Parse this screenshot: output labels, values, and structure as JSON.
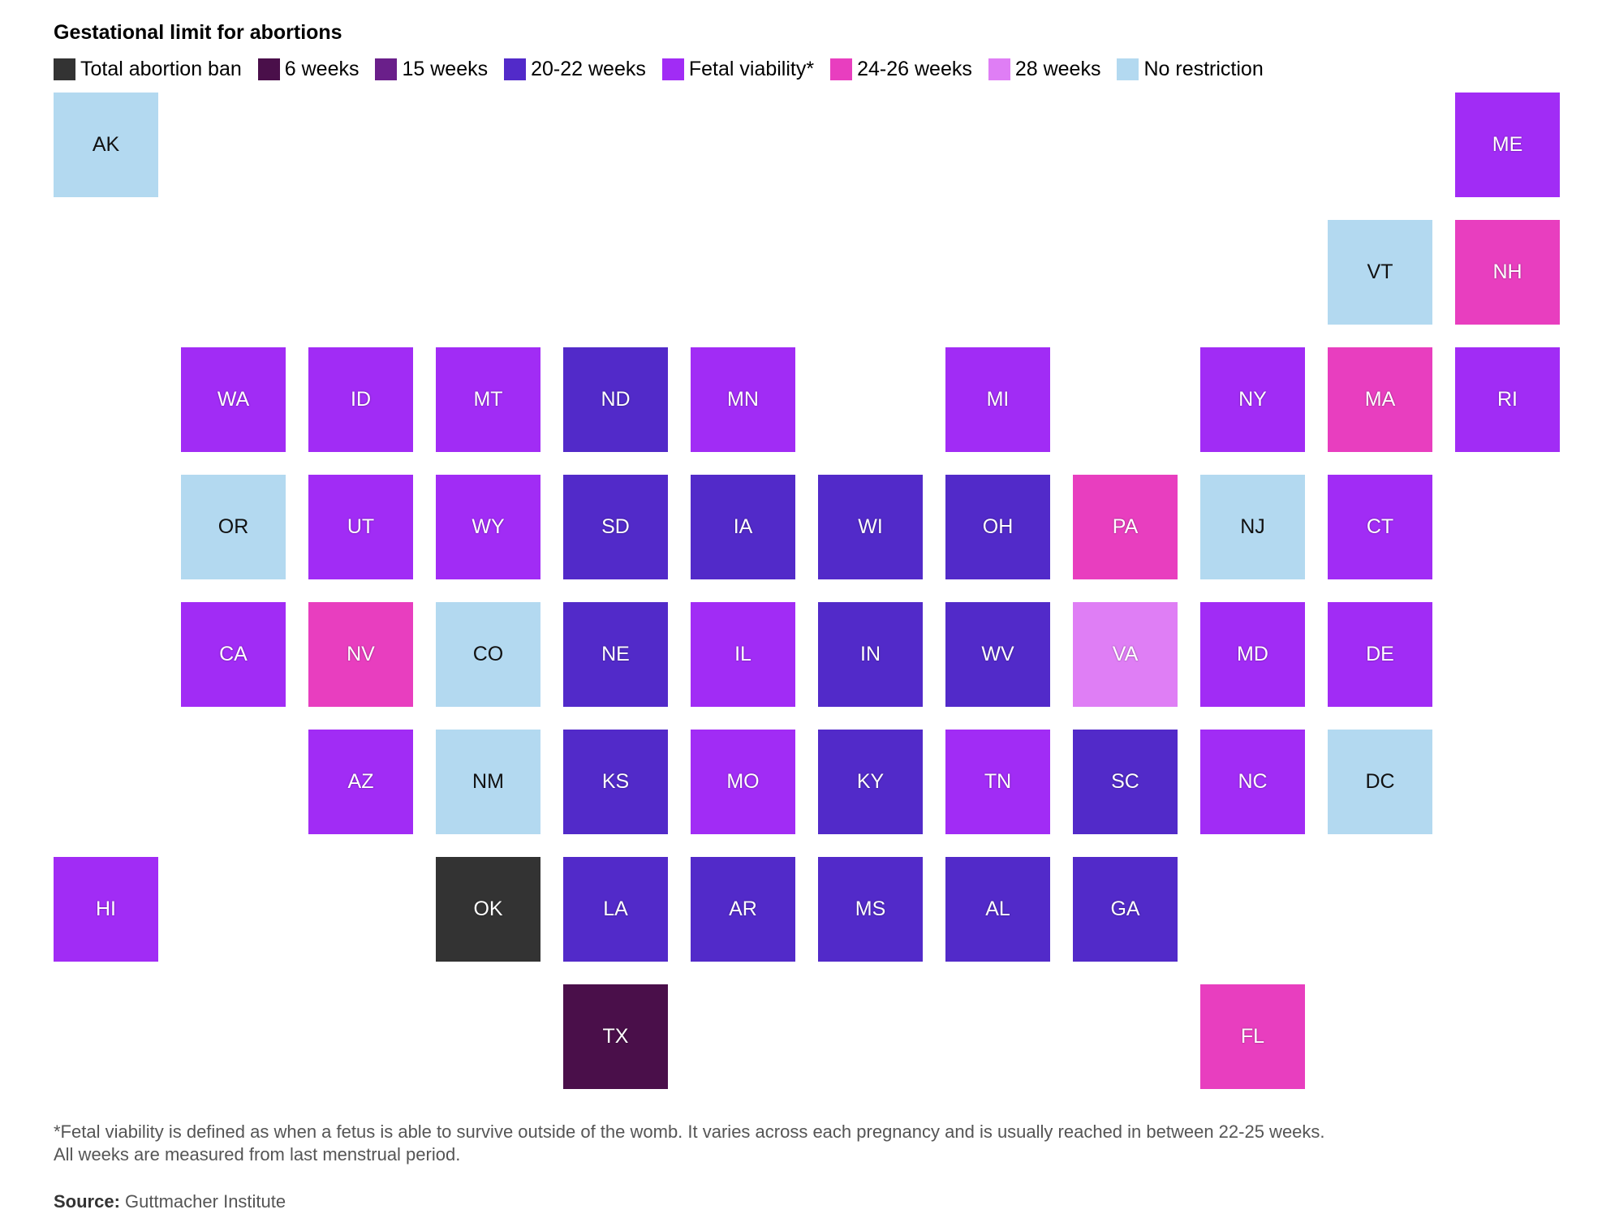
{
  "title": "Gestational limit for abortions",
  "legend": [
    {
      "key": "ban",
      "label": "Total abortion ban",
      "color": "#333333"
    },
    {
      "key": "w6",
      "label": "6 weeks",
      "color": "#4a0f4a"
    },
    {
      "key": "w15",
      "label": "15 weeks",
      "color": "#6a1f8a"
    },
    {
      "key": "w2022",
      "label": "20-22 weeks",
      "color": "#522ac9"
    },
    {
      "key": "viability",
      "label": "Fetal viability*",
      "color": "#a12cf5"
    },
    {
      "key": "w2426",
      "label": "24-26 weeks",
      "color": "#e83ebf"
    },
    {
      "key": "w28",
      "label": "28 weeks",
      "color": "#df7ef5"
    },
    {
      "key": "none",
      "label": "No restriction",
      "color": "#b3d9f0"
    }
  ],
  "states": [
    {
      "code": "AK",
      "row": 0,
      "col": 0,
      "category": "none"
    },
    {
      "code": "ME",
      "row": 0,
      "col": 11,
      "category": "viability"
    },
    {
      "code": "VT",
      "row": 1,
      "col": 10,
      "category": "none"
    },
    {
      "code": "NH",
      "row": 1,
      "col": 11,
      "category": "w2426"
    },
    {
      "code": "WA",
      "row": 2,
      "col": 1,
      "category": "viability"
    },
    {
      "code": "ID",
      "row": 2,
      "col": 2,
      "category": "viability"
    },
    {
      "code": "MT",
      "row": 2,
      "col": 3,
      "category": "viability"
    },
    {
      "code": "ND",
      "row": 2,
      "col": 4,
      "category": "w2022"
    },
    {
      "code": "MN",
      "row": 2,
      "col": 5,
      "category": "viability"
    },
    {
      "code": "MI",
      "row": 2,
      "col": 7,
      "category": "viability"
    },
    {
      "code": "NY",
      "row": 2,
      "col": 9,
      "category": "viability"
    },
    {
      "code": "MA",
      "row": 2,
      "col": 10,
      "category": "w2426"
    },
    {
      "code": "RI",
      "row": 2,
      "col": 11,
      "category": "viability"
    },
    {
      "code": "OR",
      "row": 3,
      "col": 1,
      "category": "none"
    },
    {
      "code": "UT",
      "row": 3,
      "col": 2,
      "category": "viability"
    },
    {
      "code": "WY",
      "row": 3,
      "col": 3,
      "category": "viability"
    },
    {
      "code": "SD",
      "row": 3,
      "col": 4,
      "category": "w2022"
    },
    {
      "code": "IA",
      "row": 3,
      "col": 5,
      "category": "w2022"
    },
    {
      "code": "WI",
      "row": 3,
      "col": 6,
      "category": "w2022"
    },
    {
      "code": "OH",
      "row": 3,
      "col": 7,
      "category": "w2022"
    },
    {
      "code": "PA",
      "row": 3,
      "col": 8,
      "category": "w2426"
    },
    {
      "code": "NJ",
      "row": 3,
      "col": 9,
      "category": "none"
    },
    {
      "code": "CT",
      "row": 3,
      "col": 10,
      "category": "viability"
    },
    {
      "code": "CA",
      "row": 4,
      "col": 1,
      "category": "viability"
    },
    {
      "code": "NV",
      "row": 4,
      "col": 2,
      "category": "w2426"
    },
    {
      "code": "CO",
      "row": 4,
      "col": 3,
      "category": "none"
    },
    {
      "code": "NE",
      "row": 4,
      "col": 4,
      "category": "w2022"
    },
    {
      "code": "IL",
      "row": 4,
      "col": 5,
      "category": "viability"
    },
    {
      "code": "IN",
      "row": 4,
      "col": 6,
      "category": "w2022"
    },
    {
      "code": "WV",
      "row": 4,
      "col": 7,
      "category": "w2022"
    },
    {
      "code": "VA",
      "row": 4,
      "col": 8,
      "category": "w28"
    },
    {
      "code": "MD",
      "row": 4,
      "col": 9,
      "category": "viability"
    },
    {
      "code": "DE",
      "row": 4,
      "col": 10,
      "category": "viability"
    },
    {
      "code": "AZ",
      "row": 5,
      "col": 2,
      "category": "viability"
    },
    {
      "code": "NM",
      "row": 5,
      "col": 3,
      "category": "none"
    },
    {
      "code": "KS",
      "row": 5,
      "col": 4,
      "category": "w2022"
    },
    {
      "code": "MO",
      "row": 5,
      "col": 5,
      "category": "viability"
    },
    {
      "code": "KY",
      "row": 5,
      "col": 6,
      "category": "w2022"
    },
    {
      "code": "TN",
      "row": 5,
      "col": 7,
      "category": "viability"
    },
    {
      "code": "SC",
      "row": 5,
      "col": 8,
      "category": "w2022"
    },
    {
      "code": "NC",
      "row": 5,
      "col": 9,
      "category": "viability"
    },
    {
      "code": "DC",
      "row": 5,
      "col": 10,
      "category": "none"
    },
    {
      "code": "HI",
      "row": 6,
      "col": 0,
      "category": "viability"
    },
    {
      "code": "OK",
      "row": 6,
      "col": 3,
      "category": "ban"
    },
    {
      "code": "LA",
      "row": 6,
      "col": 4,
      "category": "w2022"
    },
    {
      "code": "AR",
      "row": 6,
      "col": 5,
      "category": "w2022"
    },
    {
      "code": "MS",
      "row": 6,
      "col": 6,
      "category": "w2022"
    },
    {
      "code": "AL",
      "row": 6,
      "col": 7,
      "category": "w2022"
    },
    {
      "code": "GA",
      "row": 6,
      "col": 8,
      "category": "w2022"
    },
    {
      "code": "TX",
      "row": 7,
      "col": 4,
      "category": "w6"
    },
    {
      "code": "FL",
      "row": 7,
      "col": 9,
      "category": "w2426"
    }
  ],
  "footnote": {
    "line1": "*Fetal viability is defined as when a fetus is able to survive outside of the womb. It varies across each pregnancy and is usually reached in between 22-25 weeks.",
    "line2": "All weeks are measured from last menstrual period."
  },
  "source": {
    "label": "Source:",
    "text": " Guttmacher Institute"
  }
}
